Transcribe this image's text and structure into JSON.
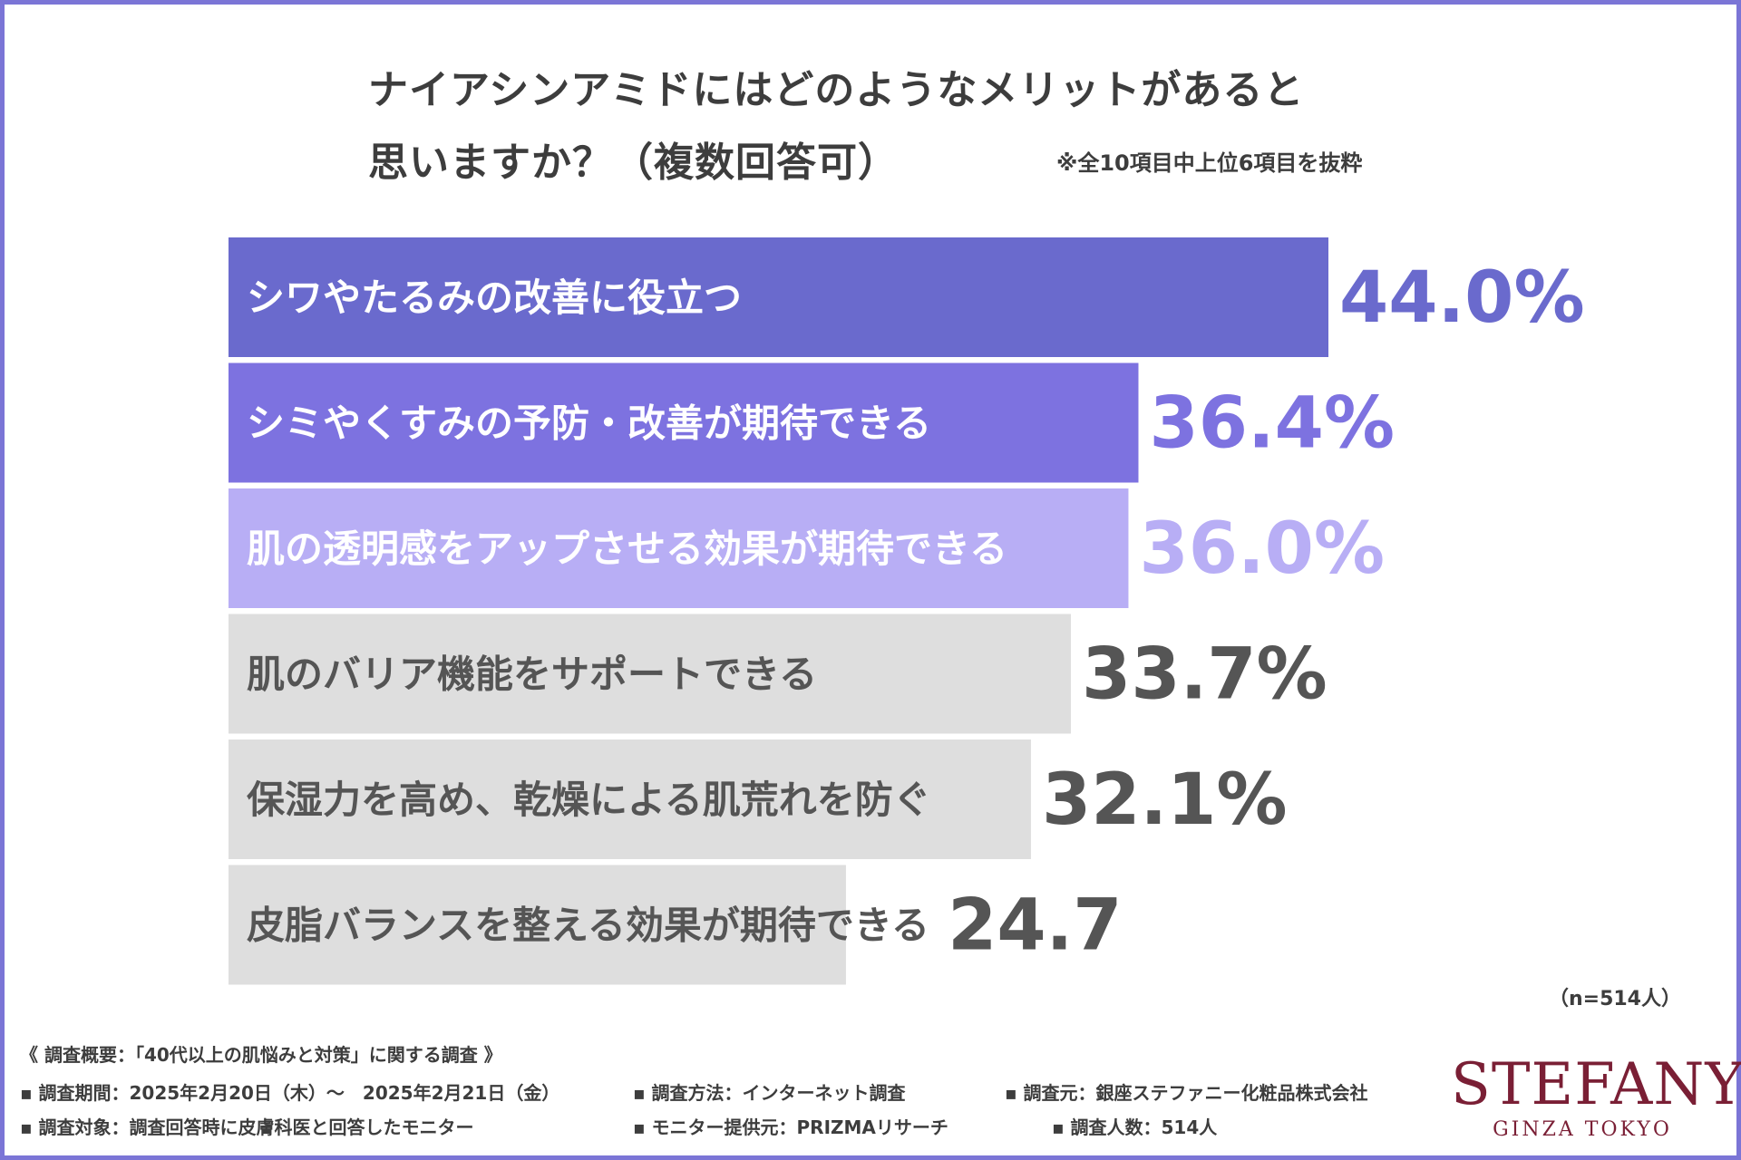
{
  "title_line1": "ナイアシンアミドにはどのようなメリットがあると",
  "title_line2": "思いますか？（複数回答可）",
  "note": "※全10項目中上位6項目を抜粋",
  "chart_data": {
    "type": "bar",
    "orientation": "horizontal",
    "categories": [
      "シワやたるみの改善に役立つ",
      "シミやくすみの予防・改善が期待できる",
      "肌の透明感をアップさせる効果が期待できる",
      "肌のバリア機能をサポートできる",
      "保湿力を高め、乾燥による肌荒れを防ぐ",
      "皮脂バランスを整える効果が期待できる"
    ],
    "values": [
      44.0,
      36.4,
      36.0,
      33.7,
      32.1,
      24.7
    ],
    "value_labels": [
      "44.0%",
      "36.4%",
      "36.0%",
      "33.7%",
      "32.1%",
      "24.7"
    ],
    "bar_colors": [
      "#6a6acd",
      "#7d72e0",
      "#b8aef5",
      "#dedede",
      "#dedede",
      "#dedede"
    ],
    "label_colors": [
      "#ffffff",
      "#ffffff",
      "#ffffff",
      "#555555",
      "#555555",
      "#555555"
    ],
    "value_colors": [
      "#6a6acd",
      "#7d72e0",
      "#b8aef5",
      "#555555",
      "#555555",
      "#555555"
    ],
    "xlim": [
      0,
      44.0
    ]
  },
  "sample_size": "（n=514人）",
  "footer": {
    "summary": "《 調査概要：「40代以上の肌悩みと対策」に関する調査 》",
    "period": "▪ 調査期間：2025年2月20日（木）～　2025年2月21日（金）",
    "method": "▪ 調査方法：インターネット調査",
    "source": "▪ 調査元：銀座ステファニー化粧品株式会社",
    "target": "▪ 調査対象：調査回答時に皮膚科医と回答したモニター",
    "provider": "▪ モニター提供元：PRIZMAリサーチ",
    "count": "▪ 調査人数：514人"
  },
  "logo": {
    "main": "STEFANY",
    "sub": "GINZA TOKYO"
  },
  "colors": {
    "frame": "#7b75d6",
    "text": "#3d3d3d",
    "logo": "#7a1f35"
  }
}
